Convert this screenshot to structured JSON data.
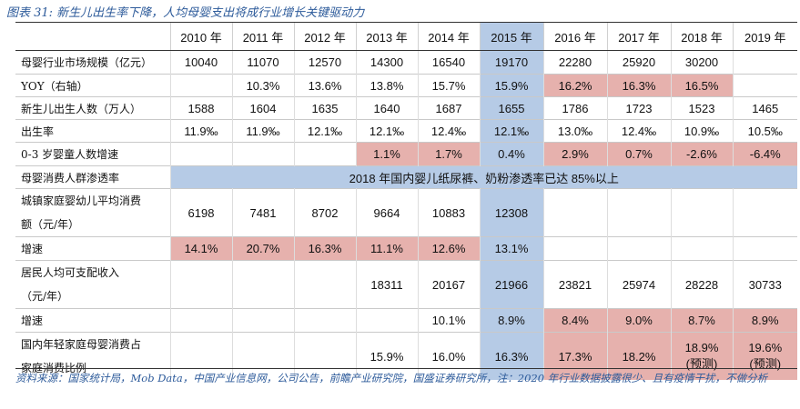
{
  "title": "图表 31: 新生儿出生率下降，人均母婴支出将成行业增长关键驱动力",
  "years": [
    "2010 年",
    "2011 年",
    "2012 年",
    "2013 年",
    "2014 年",
    "2015 年",
    "2016 年",
    "2017 年",
    "2018 年",
    "2019 年"
  ],
  "rows": {
    "market": {
      "label": "母婴行业市场规模（亿元）",
      "values": [
        "10040",
        "11070",
        "12570",
        "14300",
        "16540",
        "19170",
        "22280",
        "25920",
        "30200",
        ""
      ]
    },
    "yoy": {
      "label": "YOY（右轴）",
      "values": [
        "",
        "10.3%",
        "13.6%",
        "13.8%",
        "15.7%",
        "15.9%",
        "16.2%",
        "16.3%",
        "16.5%",
        ""
      ]
    },
    "births": {
      "label": "新生儿出生人数（万人）",
      "values": [
        "1588",
        "1604",
        "1635",
        "1640",
        "1687",
        "1655",
        "1786",
        "1723",
        "1523",
        "1465"
      ]
    },
    "birthrate": {
      "label": "出生率",
      "values": [
        "11.9‰",
        "11.9‰",
        "12.1‰",
        "12.1‰",
        "12.4‰",
        "12.1‰",
        "13.0‰",
        "12.4‰",
        "10.9‰",
        "10.5‰"
      ]
    },
    "infant": {
      "label": "0-3 岁婴童人数增速",
      "values": [
        "",
        "",
        "",
        "1.1%",
        "1.7%",
        "0.4%",
        "2.9%",
        "0.7%",
        "-2.6%",
        "-6.4%"
      ]
    },
    "penetration": {
      "label": "母婴消费人群渗透率",
      "band": "2018 年国内婴儿纸尿裤、奶粉渗透率已达 85%以上"
    },
    "urban": {
      "label_line1": "城镇家庭婴幼儿平均消费",
      "label_line2": "额（元/年）",
      "values": [
        "6198",
        "7481",
        "8702",
        "9664",
        "10883",
        "12308",
        "",
        "",
        "",
        ""
      ]
    },
    "urban_growth": {
      "label": "增速",
      "values": [
        "14.1%",
        "20.7%",
        "16.3%",
        "11.1%",
        "12.6%",
        "13.1%",
        "",
        "",
        "",
        ""
      ]
    },
    "income": {
      "label_line1": "居民人均可支配收入",
      "label_line2": "（元/年）",
      "values": [
        "",
        "",
        "",
        "18311",
        "20167",
        "21966",
        "23821",
        "25974",
        "28228",
        "30733"
      ]
    },
    "income_growth": {
      "label": "增速",
      "values": [
        "",
        "",
        "",
        "",
        "10.1%",
        "8.9%",
        "8.4%",
        "9.0%",
        "8.7%",
        "8.9%"
      ]
    },
    "share": {
      "label_line1": "国内年轻家庭母婴消费占",
      "label_line2": "家庭消费比例",
      "values": [
        "",
        "",
        "",
        "15.9%",
        "16.0%",
        "16.3%",
        "17.3%",
        "18.2%",
        "",
        ""
      ],
      "y2018_line1": "18.9%",
      "y2018_line2": "(预测)",
      "y2019_line1": "19.6%",
      "y2019_line2": "(预测)"
    }
  },
  "footnote": "资料来源：国家统计局，Mob Data，中国产业信息网，公司公告，前瞻产业研究院，国盛证券研究所，注：2020 年行业数据披露很少、且有疫情干扰，不做分析"
}
